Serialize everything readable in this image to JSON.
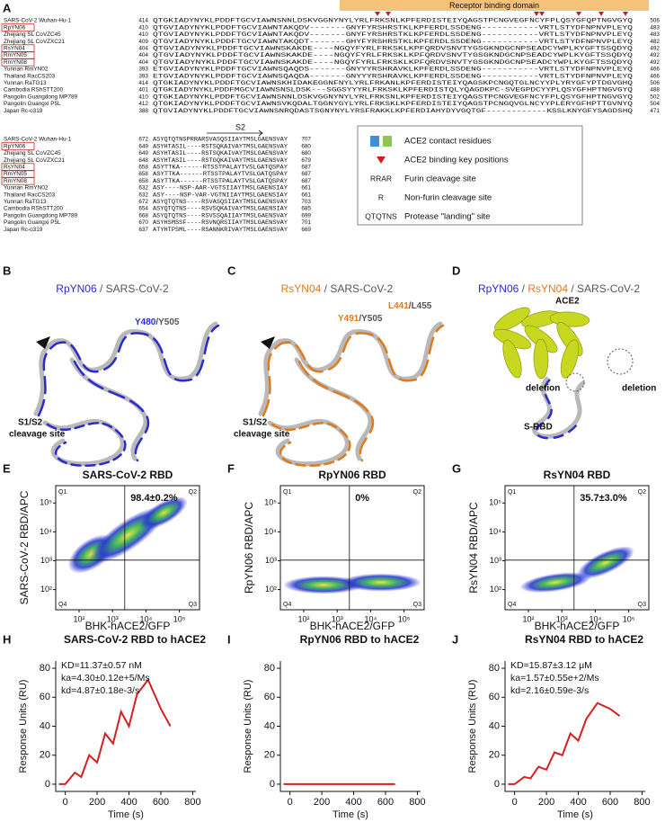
{
  "panel_letters": [
    "A",
    "B",
    "C",
    "D",
    "E",
    "F",
    "G",
    "H",
    "I",
    "J"
  ],
  "alignment": {
    "banner": "Receptor binding domain",
    "s2_label": "S2",
    "top": [
      {
        "name": "SARS-CoV-2 Wuhan-Hu-1",
        "start": "414",
        "seq": "QTGKIADYNYKLPDDFTGCVIAWNSNNLDSKVGGNYNYLYRLFRKSNLKPFERDISTEIYQAGSTPCNGVEGFNCYFPLQSYGFQPTNGVGYQ",
        "end": "506",
        "boxed": false
      },
      {
        "name": "RpYN06",
        "start": "410",
        "seq": "QTGVIADYNYKLPDDFTGCVIAWNTAKQDV-------GNYFYRSHRSTKLKPFERDLSSDENG-----------VRTLSTYDFNPNVPLEYQ",
        "end": "483",
        "boxed": true
      },
      {
        "name": "Zhejiang SL CoVZC45",
        "start": "410",
        "seq": "QTGVIADYNYKLPDDFTGCVIAWNTAKQDV-------GNYFYRSHRSTKLKPFERDLSSDENG-----------VRTLSTYDFNPNVPLEYQ",
        "end": "483",
        "boxed": false
      },
      {
        "name": "Zhejiang SL CoVZXC21",
        "start": "409",
        "seq": "QTGVIADYNYKLPDDFTGCVIAWNTAKQDT-------GHYFYRSHRSTKLKPFERDLSSDENG-----------VRTLSTYDFNPNVPLEYQ",
        "end": "482",
        "boxed": false
      },
      {
        "name": "RsYN04",
        "start": "404",
        "seq": "QTGVIADYNYKLPDDFTGCVIAWNSKAKDE----NGQYFYRLFRKSKLKPFQRDVSNVTYGSGKNDGCNPSEADCYWPLKYGFTSSQDYQ",
        "end": "492",
        "boxed": true
      },
      {
        "name": "RmYN05",
        "start": "404",
        "seq": "QTGVIADYNYKLPDDFTGCVIAWNSKAKDE----NGQYFYRLFRKSKLKPFQRDVSNVTYGSGKNDGCNPSEADCYWPLKYGFTSSQDYQ",
        "end": "492",
        "boxed": true
      },
      {
        "name": "RmYN08",
        "start": "404",
        "seq": "QTGVIADYNYKLPDDFTGCVIAWNSKAKDE----NGQYFYRLFRKSKLKPFQRDVSNVTYGSGKNDGCNPSEADCYWPLKYGFTSSQDYQ",
        "end": "492",
        "boxed": true
      },
      {
        "name": "Yunnan RmYN02",
        "start": "393",
        "seq": "ETGVIADYNYKLPDDFTGCVIAWNSQAQDS-------GNYYYRSHRAVKLKPFERDLSSDENG-----------VRTLSTYDFNPNVPLEYQ",
        "end": "466",
        "boxed": false
      },
      {
        "name": "Thailand RacCS203",
        "start": "393",
        "seq": "ETGVIADYNYKLPDDFTGCVIAWNSQAQDA-------GNYYYRSHRAVKLKPFERDLSSDENG-----------VRTLSTYDFNPNVPLEYQ",
        "end": "466",
        "boxed": false
      },
      {
        "name": "Yunnan RaTG13",
        "start": "414",
        "seq": "QTGKIADYNYKLPDDFTGCVIAWNSKHIDAKEGGNFNYLYRLFRKANLKPFERDISTEIYQAGSKPCNGQTGLNCYYPLYRYGFYPTDGVGHQ",
        "end": "506",
        "boxed": false
      },
      {
        "name": "Cambodia RShSTT200",
        "start": "401",
        "seq": "QTGKIADYNYKLPDDFMGCVIAWNSNSLDSK---SGGSYYYRLFRKSKLKPFERDISTQLYQAGDKPC-SVEGPDCYYPLQSYGFHPTNGVGYQ",
        "end": "488",
        "boxed": false
      },
      {
        "name": "Pangolin Guangdong MP789",
        "start": "410",
        "seq": "QTGKIADYNYKLPDDFTGCVIAWNSNNLDSKVGGNYNYLYRLFRKSNLKPFERDISTEIYQAGSTPCNGVEGFNCYFPLQSYGFHPTNGVGYQ",
        "end": "502",
        "boxed": false
      },
      {
        "name": "Pangolin Guangxi P5L",
        "start": "412",
        "seq": "QTGKIADYNYKLPDDFTGCVIAWNSVKQDALTGGNYGYLYRLFRKSKLKPFERDISTEIYQAGSTPCNGQVGLNCYYPLERYGFHPTTGVNYQ",
        "end": "504",
        "boxed": false
      },
      {
        "name": "Japan Rc-o319",
        "start": "388",
        "seq": "QTGVIADYNYKLPDDFTGCVIAWNSNRQDASTSGNYNYLYRSFRAKKLKPFERDIAHYDYVGQTGF------------KSSLKNYGFYSAGDSHQ",
        "end": "471",
        "boxed": false
      }
    ],
    "bottom": [
      {
        "name": "SARS-CoV-2 Wuhan-Hu-1",
        "start": "672",
        "seq": "ASYQTQTNSPRRARSVASQSIIAYTMSLGAENSVAY",
        "end": "707",
        "boxed": false
      },
      {
        "name": "RpYN06",
        "start": "649",
        "seq": "ASYHTASIL----RSTSQKAIVAYTMSLGAENSVAY",
        "end": "680",
        "boxed": true
      },
      {
        "name": "Zhejiang SL CoVZC45",
        "start": "649",
        "seq": "ASYHTASIL----RSTSQKAIVAYTMSLGAENSVAY",
        "end": "680",
        "boxed": false
      },
      {
        "name": "Zhejiang SL CoVZXC21",
        "start": "648",
        "seq": "ASYHTASIL----RSTGQKAIVAYTMSLGAENSVAY",
        "end": "679",
        "boxed": false
      },
      {
        "name": "RsYN04",
        "start": "658",
        "seq": "ASYTTKA------RTSSTPALAYTVSLGATQSPAY",
        "end": "687",
        "boxed": true
      },
      {
        "name": "RmYN05",
        "start": "658",
        "seq": "ASYTTKA------RTSSTPALAYTVSLGATQSPAY",
        "end": "687",
        "boxed": true
      },
      {
        "name": "RmYN08",
        "start": "658",
        "seq": "ASYTTKA------RTSSTPALAYTVSLGATQSPAY",
        "end": "687",
        "boxed": true
      },
      {
        "name": "Yunnan RmYN02",
        "start": "632",
        "seq": "ASY----NSP-AAR-VGTSIIAYTMSLGAENSIAY",
        "end": "661",
        "boxed": false
      },
      {
        "name": "Thailand RacCS203",
        "start": "632",
        "seq": "ASY----NSP-VAR-VGTNIIAYTMSLGAENSIAY",
        "end": "661",
        "boxed": false
      },
      {
        "name": "Yunnan RaTG13",
        "start": "672",
        "seq": "ASYQTQTNS----RSVASQSIIAYTMSLGAENSVAY",
        "end": "703",
        "boxed": false
      },
      {
        "name": "Cambodia RShSTT200",
        "start": "654",
        "seq": "ASYQTQTNS----RSVSQKAIVAYTMSLGAENSIAY",
        "end": "685",
        "boxed": false
      },
      {
        "name": "Pangolin Guangdong MP789",
        "start": "668",
        "seq": "ASYQTQTNS----RSVSSQAIIAYTMSLGAENSVAY",
        "end": "699",
        "boxed": false
      },
      {
        "name": "Pangolin Guangxi P5L",
        "start": "670",
        "seq": "ASYHSMSSF----RSVNQRSIIAYTMSLGAENSVAY",
        "end": "701",
        "boxed": false
      },
      {
        "name": "Japan Rc-o319",
        "start": "637",
        "seq": "ATYHTPSML----RSANNKRIVAYTMSLGAENSVAY",
        "end": "669",
        "boxed": false
      }
    ]
  },
  "legend": [
    {
      "label": "ACE2 contact residues"
    },
    {
      "label": "ACE2 binding key positions"
    },
    {
      "sample": "RRAR",
      "label": "Furin cleavage site"
    },
    {
      "sample": "R",
      "label": "Non-furin cleavage site"
    },
    {
      "sample": "QTQTNS",
      "label": "Protease \"landing\" site"
    }
  ],
  "structures": {
    "B": {
      "title": [
        "RpYN06",
        " / SARS-CoV-2"
      ],
      "residue": [
        "Y480",
        "/Y505"
      ],
      "site": [
        "S1/S2",
        "cleavage site"
      ]
    },
    "C": {
      "title": [
        "RsYN04",
        " / SARS-CoV-2"
      ],
      "residue": [
        "Y491",
        "/Y505"
      ],
      "residue2": [
        "L441",
        "/L455"
      ],
      "site": [
        "S1/S2",
        "cleavage site"
      ]
    },
    "D": {
      "title": [
        "RpYN06",
        " / ",
        "RsYN04",
        " / SARS-CoV-2"
      ],
      "labels": [
        "ACE2",
        "deletion",
        "deletion",
        "S-RBD"
      ]
    }
  },
  "flow": [
    {
      "title": "SARS-CoV-2 RBD",
      "percent": "98.4±0.2%",
      "ylabel": "SARS-CoV-2 RBD/APC",
      "xlabel": "BHK-hACE2/GFP",
      "quadrants": [
        "Q1",
        "Q2",
        "Q3",
        "Q4"
      ],
      "log": true,
      "lim": [
        20,
        400000
      ],
      "ticks": [
        {
          "value": 100,
          "label": "10²"
        },
        {
          "value": 1000,
          "label": "10³"
        },
        {
          "value": 10000,
          "label": "10⁴"
        },
        {
          "value": 100000,
          "label": "10⁵"
        }
      ]
    },
    {
      "title": "RpYN06 RBD",
      "percent": "0%",
      "ylabel": "RpYN06 RBD/APC",
      "xlabel": "BHK-hACE2/GFP",
      "quadrants": [
        "Q1",
        "Q2",
        "Q3",
        "Q4"
      ],
      "log": true,
      "lim": [
        20,
        400000
      ],
      "ticks": [
        {
          "value": 100,
          "label": "10²"
        },
        {
          "value": 1000,
          "label": "10³"
        },
        {
          "value": 10000,
          "label": "10⁴"
        },
        {
          "value": 100000,
          "label": "10⁵"
        }
      ]
    },
    {
      "title": "RsYN04 RBD",
      "percent": "35.7±3.0%",
      "ylabel": "RsYN04 RBD/APC",
      "xlabel": "BHK-hACE2/GFP",
      "quadrants": [
        "Q1",
        "Q2",
        "Q3",
        "Q4"
      ],
      "log": true,
      "lim": [
        20,
        400000
      ],
      "ticks": [
        {
          "value": 100,
          "label": "10²"
        },
        {
          "value": 1000,
          "label": "10³"
        },
        {
          "value": 10000,
          "label": "10⁴"
        },
        {
          "value": 100000,
          "label": "10⁵"
        }
      ]
    }
  ],
  "spr": [
    {
      "title": "SARS-CoV-2 RBD to hACE2",
      "annotations": [
        "KD=11.37±0.57 nM",
        "ka=4.30±0.12e+5/Ms",
        "kd=4.87±0.18e-3/s"
      ],
      "ylabel": "Response Units (RU)",
      "xlabel": "Time (s)",
      "xlim": [
        -60,
        820
      ],
      "ylim": [
        -5,
        85
      ],
      "xticks": [
        0,
        200,
        400,
        600,
        800
      ],
      "yticks": [
        0,
        20,
        40,
        60,
        80
      ],
      "color": "#d62020",
      "x": [
        -40,
        0,
        60,
        100,
        150,
        200,
        250,
        300,
        350,
        400,
        450,
        520,
        600,
        660
      ],
      "y": [
        0,
        0,
        8,
        5,
        20,
        15,
        35,
        28,
        50,
        40,
        62,
        72,
        52,
        40
      ]
    },
    {
      "title": "RpYN06 RBD to hACE2",
      "annotations": [],
      "ylabel": "Response Units (RU)",
      "xlabel": "Time (s)",
      "xlim": [
        -60,
        820
      ],
      "ylim": [
        -5,
        85
      ],
      "xticks": [
        0,
        200,
        400,
        600,
        800
      ],
      "yticks": [
        0,
        20,
        40,
        60,
        80
      ],
      "color": "#d62020",
      "x": [
        -40,
        0,
        200,
        400,
        660
      ],
      "y": [
        0,
        0,
        0,
        0,
        0
      ]
    },
    {
      "title": "RsYN04 RBD to hACE2",
      "annotations": [
        "KD=15.87±3.12 μM",
        "ka=1.57±0.55e+2/Ms",
        "kd=2.16±0.59e-3/s"
      ],
      "ylabel": "Response Units (RU)",
      "xlabel": "Time (s)",
      "xlim": [
        -60,
        820
      ],
      "ylim": [
        -5,
        85
      ],
      "xticks": [
        0,
        200,
        400,
        600,
        800
      ],
      "yticks": [
        0,
        20,
        40,
        60,
        80
      ],
      "color": "#d62020",
      "x": [
        -40,
        0,
        60,
        100,
        150,
        200,
        250,
        300,
        350,
        400,
        450,
        520,
        600,
        660
      ],
      "y": [
        0,
        0,
        5,
        4,
        12,
        10,
        22,
        20,
        35,
        30,
        45,
        56,
        52,
        47
      ]
    }
  ]
}
